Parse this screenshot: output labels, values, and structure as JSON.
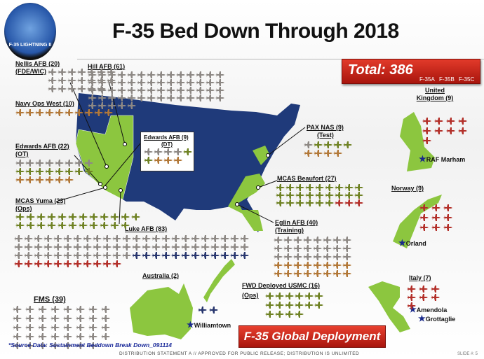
{
  "title": "F-35 Bed Down Through 2018",
  "logo": {
    "text": "F-35 LIGHTNING II"
  },
  "total": {
    "label": "Total: 386",
    "variants": [
      "F-35A",
      "F-35B",
      "F-35C"
    ]
  },
  "colors": {
    "F-35A": "#8d8884",
    "F-35B": "#6f8224",
    "F-35C": "#b27838",
    "foreign_red": "#b3302a",
    "foreign_blue": "#28366e",
    "us_map": "#1f3a7a",
    "highlight_green": "#8cc63f"
  },
  "bases": {
    "nellis": {
      "label": "Nellis AFB (20)",
      "sub": "(FDE/WIC)",
      "planes": {
        "F-35A": 20
      }
    },
    "hill": {
      "label": "Hill AFB (61)",
      "planes": {
        "F-35A": 61
      }
    },
    "navy_ops_west": {
      "label": "Navy Ops West (10)",
      "planes": {
        "F-35C": 10
      }
    },
    "edwards_ot": {
      "label": "Edwards AFB (22)",
      "sub": "(OT)",
      "planes": {
        "F-35A": 8,
        "F-35B": 8,
        "F-35C": 6
      }
    },
    "edwards_dt": {
      "label": "Edwards AFB (9)",
      "sub": "(DT)",
      "planes": {
        "F-35A": 4,
        "F-35B": 2,
        "F-35C": 3
      }
    },
    "yuma": {
      "label": "MCAS Yuma (23)",
      "sub": "(Ops)",
      "planes": {
        "F-35B": 23
      }
    },
    "luke": {
      "label": "Luke AFB (83)",
      "planes": {
        "F-35A": 60,
        "foreign_blue": 12,
        "foreign_red": 11
      }
    },
    "pax": {
      "label": "PAX NAS (9)",
      "sub": "(Test)",
      "planes": {
        "F-35A": 1,
        "F-35B": 4,
        "F-35C": 4
      }
    },
    "beaufort": {
      "label": "MCAS Beaufort (27)",
      "planes": {
        "F-35B": 24,
        "foreign_red": 3
      }
    },
    "eglin": {
      "label": "Eglin AFB (40)",
      "sub": "(Training)",
      "planes": {
        "F-35A": 24,
        "F-35B": 0,
        "F-35C": 16
      }
    },
    "uk": {
      "label": "United Kingdom (9)",
      "city": "RAF Marham",
      "planes": {
        "foreign_red": 9
      }
    },
    "norway": {
      "label": "Norway (9)",
      "city": "Orland",
      "planes": {
        "foreign_red": 9
      }
    },
    "italy": {
      "label": "Italy (7)",
      "cities": [
        "Amendola",
        "Grottaglie"
      ],
      "planes": {
        "foreign_red": 7
      }
    },
    "australia": {
      "label": "Australia (2)",
      "city": "Williamtown",
      "planes": {
        "foreign_blue": 2
      }
    },
    "fms": {
      "label": "FMS (39)",
      "planes": {
        "F-35A": 39
      }
    },
    "fwd_usmc": {
      "label": "FWD Deployed USMC (16)",
      "sub": "(Ops)",
      "planes": {
        "F-35B": 16
      }
    }
  },
  "global_button": "F-35 Global Deployment",
  "source": "*Source Data: Sustainment Beddown Break Down_091114",
  "distribution": "DISTRIBUTION STATEMENT A // APPROVED FOR PUBLIC RELEASE; DISTRIBUTION IS UNLIMITED",
  "slide": "SLIDE #: 5"
}
